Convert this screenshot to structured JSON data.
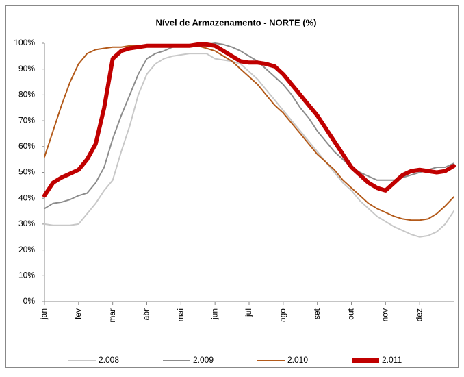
{
  "chart_data": {
    "type": "line",
    "title": "Nível de Armazenamento - NORTE (%)",
    "categories": [
      "jan",
      null,
      null,
      null,
      "fev",
      null,
      null,
      null,
      "mar",
      null,
      null,
      null,
      "abr",
      null,
      null,
      null,
      "mai",
      null,
      null,
      null,
      "jun",
      null,
      null,
      null,
      "jul",
      null,
      null,
      null,
      "ago",
      null,
      null,
      null,
      "set",
      null,
      null,
      null,
      "out",
      null,
      null,
      null,
      "nov",
      null,
      null,
      null,
      "dez",
      null,
      null,
      null,
      null
    ],
    "series": [
      {
        "name": "2.008",
        "color": "#c8c8c8",
        "width": 2,
        "values": [
          30,
          29.5,
          29.5,
          29.5,
          30,
          34,
          38,
          43,
          47,
          58,
          68,
          80,
          88,
          92,
          94,
          95,
          95.5,
          96,
          96,
          96,
          94,
          93.5,
          93,
          92,
          89,
          86,
          82,
          78,
          74,
          70,
          66,
          62,
          58,
          54,
          50,
          46,
          43,
          39,
          36,
          33,
          31,
          29,
          27.5,
          26,
          25,
          25.5,
          27,
          30,
          35
        ]
      },
      {
        "name": "2.009",
        "color": "#8c8c8c",
        "width": 2,
        "values": [
          36,
          38,
          38.5,
          39.5,
          41,
          42,
          46,
          52,
          63,
          72,
          80,
          88,
          94,
          96,
          97,
          98.5,
          99,
          99.5,
          99.5,
          99.5,
          100,
          99.5,
          98.5,
          97,
          95,
          93,
          90,
          87,
          84,
          80,
          75,
          71,
          66,
          62,
          58,
          55,
          52,
          50,
          48.5,
          47,
          47,
          47,
          48,
          49,
          50,
          51,
          52,
          52,
          53.5
        ]
      },
      {
        "name": "2.010",
        "color": "#b35a1a",
        "width": 2,
        "values": [
          56,
          66,
          76,
          85,
          92,
          96,
          97.5,
          98,
          98.5,
          98.5,
          99,
          99,
          99,
          99,
          99,
          99,
          99,
          99,
          99,
          98,
          97,
          95,
          93,
          90,
          87,
          84,
          80,
          76,
          73,
          69,
          65,
          61,
          57,
          54,
          51,
          47,
          44,
          41,
          38,
          36,
          34.5,
          33,
          32,
          31.5,
          31.5,
          32,
          34,
          37,
          40.5
        ]
      },
      {
        "name": "2.011",
        "color": "#c00000",
        "width": 6,
        "values": [
          41,
          46,
          48,
          49.5,
          51,
          55,
          61,
          75,
          94,
          97,
          98,
          98.5,
          99,
          99,
          99,
          99,
          99,
          99,
          99.5,
          99.5,
          99,
          97,
          95,
          93,
          92.5,
          92.5,
          92,
          91,
          88,
          84,
          80,
          76,
          72,
          67,
          62,
          57,
          52,
          49,
          46,
          44,
          43,
          46,
          49,
          50.5,
          51,
          50.5,
          50,
          50.5,
          52.5
        ]
      }
    ],
    "ylim": [
      0,
      100
    ],
    "yticks": [
      {
        "value": 0,
        "label": "0%"
      },
      {
        "value": 10,
        "label": "10%"
      },
      {
        "value": 20,
        "label": "20%"
      },
      {
        "value": 30,
        "label": "30%"
      },
      {
        "value": 40,
        "label": "40%"
      },
      {
        "value": 50,
        "label": "50%"
      },
      {
        "value": 60,
        "label": "60%"
      },
      {
        "value": 70,
        "label": "70%"
      },
      {
        "value": 80,
        "label": "80%"
      },
      {
        "value": 90,
        "label": "90%"
      },
      {
        "value": 100,
        "label": "100%"
      }
    ],
    "grid": false,
    "legend": "bottom"
  }
}
